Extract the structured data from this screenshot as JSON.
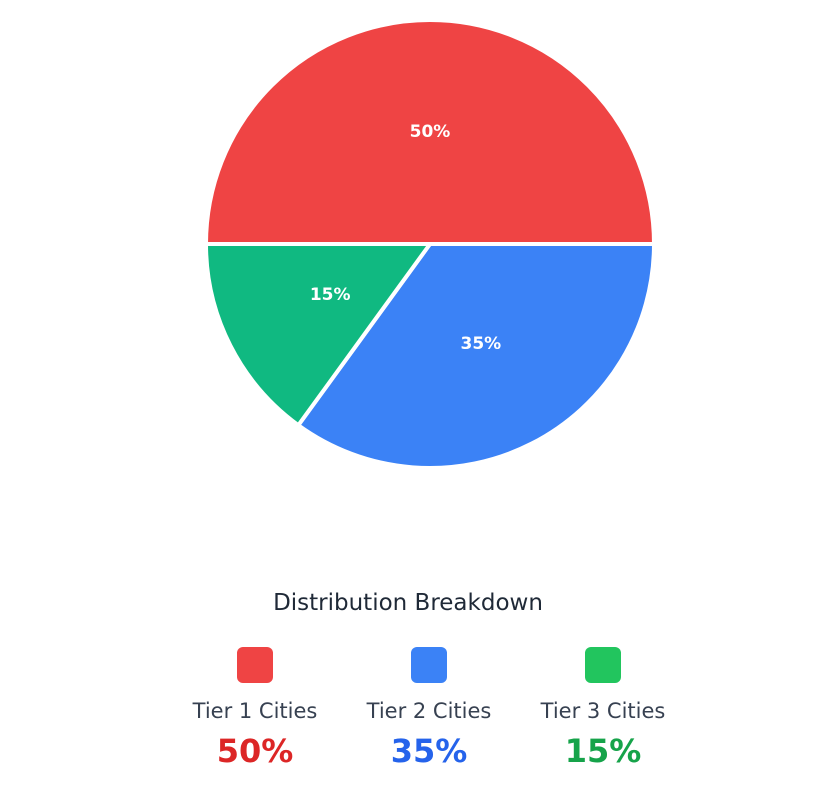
{
  "chart_data": {
    "type": "pie",
    "categories": [
      "Tier 1 Cities",
      "Tier 2 Cities",
      "Tier 3 Cities"
    ],
    "values": [
      50,
      35,
      15
    ],
    "slice_labels": [
      "50%",
      "35%",
      "15%"
    ],
    "slice_colors": [
      "#ef4444",
      "#3b82f6",
      "#10b981"
    ]
  },
  "breakdown": {
    "title": "Distribution Breakdown",
    "items": [
      {
        "label": "Tier 1 Cities",
        "value": "50%",
        "swatch_color": "#ef4444",
        "value_color": "#dc2626"
      },
      {
        "label": "Tier 2 Cities",
        "value": "35%",
        "swatch_color": "#3b82f6",
        "value_color": "#2563eb"
      },
      {
        "label": "Tier 3 Cities",
        "value": "15%",
        "swatch_color": "#22c55e",
        "value_color": "#16a34a"
      }
    ]
  }
}
